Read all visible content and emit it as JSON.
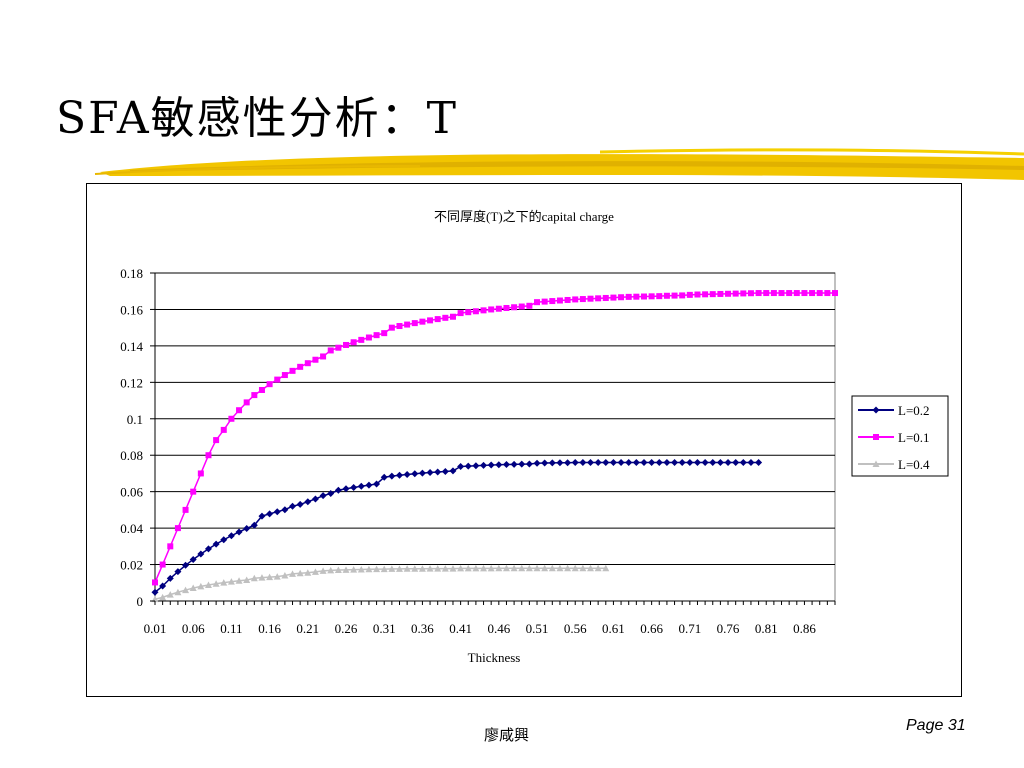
{
  "slide": {
    "title": "SFA敏感性分析：T",
    "author": "廖咸興",
    "page_label": "Page 31"
  },
  "colors": {
    "brush": "#f2c500",
    "brush_dark": "#d9a800"
  },
  "chart_data": {
    "type": "line",
    "title": "不同厚度(T)之下的capital charge",
    "xlabel": "Thickness",
    "ylabel": "",
    "x_start": 0.01,
    "x_step": 0.01,
    "x_count": 90,
    "xticks": [
      "0.01",
      "0.06",
      "0.11",
      "0.16",
      "0.21",
      "0.26",
      "0.31",
      "0.36",
      "0.41",
      "0.46",
      "0.51",
      "0.56",
      "0.61",
      "0.66",
      "0.71",
      "0.76",
      "0.81",
      "0.86"
    ],
    "yticks": [
      "0",
      "0.02",
      "0.04",
      "0.06",
      "0.08",
      "0.1",
      "0.12",
      "0.14",
      "0.16",
      "0.18"
    ],
    "ylim": [
      0,
      0.18
    ],
    "grid": true,
    "legend_position": "right",
    "series": [
      {
        "name": "L=0.2",
        "color": "#000080",
        "marker": "diamond",
        "values": [
          0.0048,
          0.0082,
          0.0124,
          0.0161,
          0.0196,
          0.0228,
          0.0258,
          0.0286,
          0.0312,
          0.0336,
          0.0358,
          0.0379,
          0.0398,
          0.0416,
          0.0466,
          0.0478,
          0.049,
          0.0501,
          0.052,
          0.053,
          0.0545,
          0.056,
          0.0578,
          0.059,
          0.0608,
          0.0616,
          0.0623,
          0.063,
          0.0636,
          0.0642,
          0.0679,
          0.0685,
          0.069,
          0.0694,
          0.0698,
          0.0702,
          0.0705,
          0.0708,
          0.0711,
          0.0714,
          0.0738,
          0.074,
          0.0742,
          0.0744,
          0.0746,
          0.0748,
          0.0749,
          0.075,
          0.0751,
          0.0752,
          0.0756,
          0.0757,
          0.0758,
          0.0759,
          0.0759,
          0.076,
          0.076,
          0.076,
          0.076,
          0.076,
          0.076,
          0.076,
          0.076,
          0.076,
          0.076,
          0.076,
          0.076,
          0.076,
          0.076,
          0.076,
          0.076,
          0.076,
          0.076,
          0.076,
          0.076,
          0.076,
          0.076,
          0.076,
          0.076,
          0.076
        ]
      },
      {
        "name": "L=0.1",
        "color": "#ff00ff",
        "marker": "square",
        "values": [
          0.0102,
          0.02,
          0.03,
          0.04,
          0.05,
          0.06,
          0.07,
          0.08,
          0.0883,
          0.0939,
          0.1,
          0.1047,
          0.109,
          0.113,
          0.1158,
          0.119,
          0.1215,
          0.124,
          0.1263,
          0.1285,
          0.1305,
          0.1324,
          0.1342,
          0.1375,
          0.139,
          0.1405,
          0.142,
          0.1433,
          0.1446,
          0.1459,
          0.147,
          0.15,
          0.1509,
          0.1517,
          0.1525,
          0.1533,
          0.154,
          0.1547,
          0.1554,
          0.156,
          0.158,
          0.1585,
          0.159,
          0.1595,
          0.16,
          0.1604,
          0.1608,
          0.1612,
          0.1616,
          0.162,
          0.164,
          0.1643,
          0.1646,
          0.1649,
          0.1652,
          0.1655,
          0.1657,
          0.1659,
          0.1661,
          0.1663,
          0.1665,
          0.1667,
          0.1669,
          0.167,
          0.1671,
          0.1672,
          0.1673,
          0.1675,
          0.1676,
          0.1677,
          0.168,
          0.1682,
          0.1683,
          0.1684,
          0.1685,
          0.1686,
          0.1687,
          0.1688,
          0.1689,
          0.169,
          0.169,
          0.169,
          0.169,
          0.169,
          0.169,
          0.169,
          0.169,
          0.169,
          0.169,
          0.169
        ]
      },
      {
        "name": "L=0.4",
        "color": "#c0c0c0",
        "marker": "triangle",
        "values": [
          0.001,
          0.002,
          0.0035,
          0.0048,
          0.006,
          0.0071,
          0.008,
          0.0088,
          0.0095,
          0.0101,
          0.0106,
          0.0111,
          0.0115,
          0.0125,
          0.0128,
          0.0131,
          0.0134,
          0.014,
          0.0149,
          0.0152,
          0.0155,
          0.016,
          0.0165,
          0.0168,
          0.017,
          0.0171,
          0.0172,
          0.0173,
          0.0174,
          0.0175,
          0.0175,
          0.0176,
          0.0176,
          0.0177,
          0.0177,
          0.0177,
          0.0178,
          0.0178,
          0.0178,
          0.0178,
          0.0179,
          0.0179,
          0.0179,
          0.0179,
          0.0179,
          0.018,
          0.018,
          0.018,
          0.018,
          0.018,
          0.018,
          0.018,
          0.018,
          0.018,
          0.018,
          0.018,
          0.018,
          0.018,
          0.018,
          0.018
        ]
      }
    ]
  }
}
